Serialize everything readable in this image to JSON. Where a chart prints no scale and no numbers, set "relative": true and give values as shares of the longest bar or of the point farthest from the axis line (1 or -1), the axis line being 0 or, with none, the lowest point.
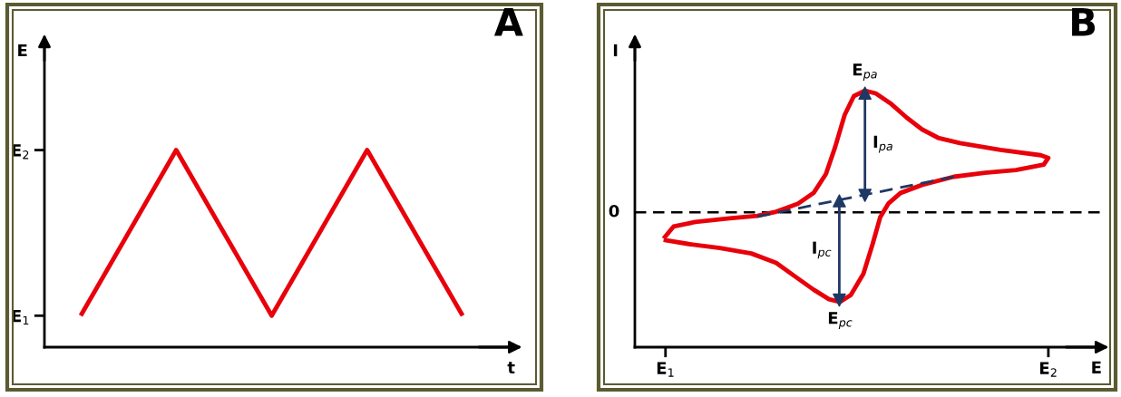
{
  "chart_data": [
    {
      "type": "line",
      "title": "A",
      "xlabel": "t",
      "ylabel": "E",
      "categories": [
        null,
        null,
        null,
        null,
        null
      ],
      "series": [
        {
          "color": "#e8000b",
          "values": [
            1,
            2,
            1,
            2,
            1
          ]
        }
      ],
      "ylim": [
        0.81,
        2.66
      ],
      "yticks": [
        {
          "value": 1,
          "label": "E$_{1}$"
        },
        {
          "value": 2,
          "label": "E$_{2}$"
        }
      ],
      "tick_labels": "y",
      "grid": false,
      "marker": "none",
      "line_style": "solid"
    },
    {
      "type": "line",
      "title": "B",
      "xlabel": "E",
      "ylabel": "I",
      "relative": true,
      "xlim": [
        0.92,
        2.14
      ],
      "xticks": [
        {
          "value": 1,
          "label": "E$_{1}$"
        },
        {
          "value": 2,
          "label": "E$_{2}$"
        }
      ],
      "tick_labels": "x",
      "grid": false,
      "series": [
        {
          "color": "#e8000b",
          "x": [
            0.995,
            1.021,
            1.078,
            1.167,
            1.24,
            1.289,
            1.346,
            1.387,
            1.419,
            1.443,
            1.468,
            1.492,
            1.521,
            1.549,
            1.59,
            1.63,
            1.671,
            1.712,
            1.769,
            1.875,
            1.98,
            2.0,
            1.988,
            1.915,
            1.834,
            1.753,
            1.671,
            1.614,
            1.582,
            1.561,
            1.541,
            1.517,
            1.484,
            1.456,
            1.427,
            1.387,
            1.338,
            1.289,
            1.224,
            1.142,
            1.061,
            0.995
          ],
          "values": [
            -0.215,
            -0.116,
            -0.078,
            -0.049,
            -0.028,
            0.006,
            0.072,
            0.16,
            0.315,
            0.536,
            0.801,
            0.956,
            1.0,
            0.978,
            0.89,
            0.779,
            0.68,
            0.613,
            0.569,
            0.514,
            0.47,
            0.448,
            0.392,
            0.348,
            0.326,
            0.293,
            0.227,
            0.16,
            0.072,
            -0.038,
            -0.26,
            -0.503,
            -0.679,
            -0.735,
            -0.713,
            -0.635,
            -0.525,
            -0.414,
            -0.337,
            -0.293,
            -0.26,
            -0.226
          ],
          "line_style": "solid"
        },
        {
          "color": "#1f3864",
          "x": [
            1.24,
            1.753
          ],
          "values": [
            -0.034,
            0.293
          ],
          "line_style": "dashed"
        },
        {
          "color": "#1f3864",
          "x": [
            1.521,
            1.521
          ],
          "values": [
            0.98,
            0.14
          ],
          "line_style": "solid",
          "marker": "triangle"
        },
        {
          "color": "#1f3864",
          "x": [
            1.454,
            1.454
          ],
          "values": [
            0.095,
            -0.72
          ],
          "line_style": "solid",
          "marker": "triangle"
        }
      ],
      "ref_lines": [
        {
          "axis": "y",
          "value": 0,
          "label": "0",
          "color": "#000000",
          "line_style": "dashed"
        }
      ],
      "annotations": [
        {
          "text": "E$_{pa}$",
          "x": 1.521,
          "y": 1.0
        },
        {
          "text": "E$_{pc}$",
          "x": 1.456,
          "y": -0.735
        },
        {
          "text": "I$_{pa}$",
          "x": 1.521,
          "y": 0.56
        },
        {
          "text": "I$_{pc}$",
          "x": 1.454,
          "y": -0.31
        }
      ]
    }
  ]
}
